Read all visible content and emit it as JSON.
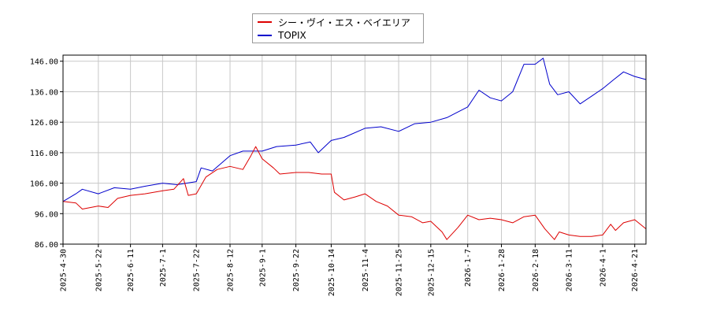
{
  "chart_data": {
    "type": "line",
    "title": "",
    "xlabel": "",
    "ylabel": "",
    "ylim": [
      86,
      148
    ],
    "yticks": [
      "86.00",
      "96.00",
      "106.00",
      "116.00",
      "126.00",
      "136.00",
      "146.00"
    ],
    "xticks": [
      "2025-4-30",
      "2025-5-22",
      "2025-6-11",
      "2025-7-1",
      "2025-7-22",
      "2025-8-12",
      "2025-9-1",
      "2025-9-22",
      "2025-10-14",
      "2025-11-4",
      "2025-11-25",
      "2025-12-15",
      "2026-1-7",
      "2026-1-28",
      "2026-2-18",
      "2026-3-11",
      "2026-4-1",
      "2026-4-21"
    ],
    "grid": true,
    "legend_position": "top-center",
    "series": [
      {
        "name": "シー・ヴイ・エス・ベイエリア",
        "color": "#dd0000",
        "points": [
          [
            "2025-4-30",
            100.0
          ],
          [
            "2025-5-8",
            99.5
          ],
          [
            "2025-5-12",
            97.5
          ],
          [
            "2025-5-22",
            98.5
          ],
          [
            "2025-5-28",
            98.0
          ],
          [
            "2025-6-3",
            101.0
          ],
          [
            "2025-6-11",
            102.0
          ],
          [
            "2025-6-20",
            102.5
          ],
          [
            "2025-7-1",
            103.5
          ],
          [
            "2025-7-8",
            104.0
          ],
          [
            "2025-7-14",
            107.5
          ],
          [
            "2025-7-17",
            102.0
          ],
          [
            "2025-7-22",
            102.5
          ],
          [
            "2025-7-28",
            108.0
          ],
          [
            "2025-8-4",
            110.5
          ],
          [
            "2025-8-12",
            111.5
          ],
          [
            "2025-8-20",
            110.5
          ],
          [
            "2025-8-25",
            115.0
          ],
          [
            "2025-8-28",
            118.0
          ],
          [
            "2025-9-1",
            114.0
          ],
          [
            "2025-9-8",
            111.0
          ],
          [
            "2025-9-12",
            109.0
          ],
          [
            "2025-9-22",
            109.5
          ],
          [
            "2025-9-30",
            109.5
          ],
          [
            "2025-10-8",
            109.0
          ],
          [
            "2025-10-14",
            109.0
          ],
          [
            "2025-10-16",
            103.0
          ],
          [
            "2025-10-22",
            100.5
          ],
          [
            "2025-10-29",
            101.5
          ],
          [
            "2025-11-4",
            102.5
          ],
          [
            "2025-11-11",
            100.0
          ],
          [
            "2025-11-18",
            98.5
          ],
          [
            "2025-11-25",
            95.5
          ],
          [
            "2025-12-3",
            95.0
          ],
          [
            "2025-12-10",
            93.0
          ],
          [
            "2025-12-15",
            93.5
          ],
          [
            "2025-12-22",
            90.0
          ],
          [
            "2025-12-25",
            87.5
          ],
          [
            "2026-1-1",
            91.5
          ],
          [
            "2026-1-7",
            95.5
          ],
          [
            "2026-1-14",
            94.0
          ],
          [
            "2026-1-21",
            94.5
          ],
          [
            "2026-1-28",
            94.0
          ],
          [
            "2026-2-4",
            93.0
          ],
          [
            "2026-2-11",
            95.0
          ],
          [
            "2026-2-18",
            95.5
          ],
          [
            "2026-2-24",
            91.0
          ],
          [
            "2026-3-2",
            87.5
          ],
          [
            "2026-3-5",
            90.0
          ],
          [
            "2026-3-11",
            89.0
          ],
          [
            "2026-3-18",
            88.5
          ],
          [
            "2026-3-25",
            88.5
          ],
          [
            "2026-4-1",
            89.0
          ],
          [
            "2026-4-6",
            92.5
          ],
          [
            "2026-4-9",
            90.5
          ],
          [
            "2026-4-14",
            93.0
          ],
          [
            "2026-4-21",
            94.0
          ],
          [
            "2026-4-28",
            91.0
          ]
        ]
      },
      {
        "name": "TOPIX",
        "color": "#0000cc",
        "points": [
          [
            "2025-4-30",
            100.0
          ],
          [
            "2025-5-8",
            102.5
          ],
          [
            "2025-5-12",
            104.0
          ],
          [
            "2025-5-22",
            102.5
          ],
          [
            "2025-6-1",
            104.5
          ],
          [
            "2025-6-11",
            104.0
          ],
          [
            "2025-6-20",
            105.0
          ],
          [
            "2025-7-1",
            106.0
          ],
          [
            "2025-7-10",
            105.5
          ],
          [
            "2025-7-22",
            106.5
          ],
          [
            "2025-7-25",
            111.0
          ],
          [
            "2025-8-1",
            110.0
          ],
          [
            "2025-8-12",
            115.0
          ],
          [
            "2025-8-20",
            116.5
          ],
          [
            "2025-9-1",
            116.5
          ],
          [
            "2025-9-10",
            118.0
          ],
          [
            "2025-9-22",
            118.5
          ],
          [
            "2025-10-1",
            119.5
          ],
          [
            "2025-10-6",
            116.0
          ],
          [
            "2025-10-14",
            120.0
          ],
          [
            "2025-10-22",
            121.0
          ],
          [
            "2025-11-4",
            124.0
          ],
          [
            "2025-11-14",
            124.5
          ],
          [
            "2025-11-25",
            123.0
          ],
          [
            "2025-12-5",
            125.5
          ],
          [
            "2025-12-15",
            126.0
          ],
          [
            "2025-12-25",
            127.5
          ],
          [
            "2026-1-7",
            131.0
          ],
          [
            "2026-1-14",
            136.5
          ],
          [
            "2026-1-21",
            134.0
          ],
          [
            "2026-1-28",
            133.0
          ],
          [
            "2026-2-4",
            136.0
          ],
          [
            "2026-2-11",
            145.0
          ],
          [
            "2026-2-18",
            145.0
          ],
          [
            "2026-2-23",
            147.0
          ],
          [
            "2026-2-27",
            138.5
          ],
          [
            "2026-3-4",
            135.0
          ],
          [
            "2026-3-11",
            136.0
          ],
          [
            "2026-3-18",
            132.0
          ],
          [
            "2026-3-25",
            134.5
          ],
          [
            "2026-4-1",
            137.0
          ],
          [
            "2026-4-8",
            140.0
          ],
          [
            "2026-4-14",
            142.5
          ],
          [
            "2026-4-21",
            141.0
          ],
          [
            "2026-4-28",
            140.0
          ]
        ]
      }
    ]
  }
}
